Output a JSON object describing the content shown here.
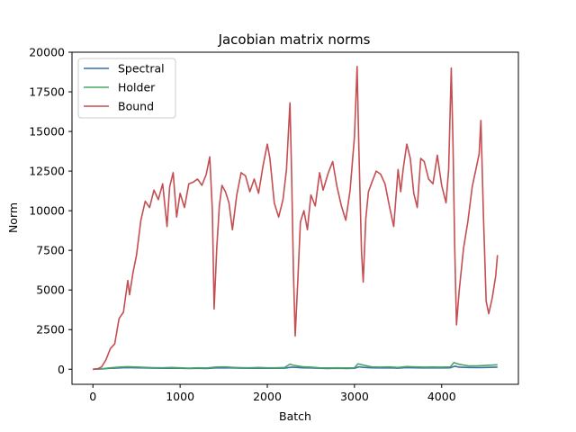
{
  "chart_data": {
    "type": "line",
    "title": "Jacobian matrix norms",
    "xlabel": "Batch",
    "ylabel": "Norm",
    "xlim": [
      -240,
      4880
    ],
    "ylim": [
      -950,
      20000
    ],
    "xticks": [
      0,
      1000,
      2000,
      3000,
      4000
    ],
    "yticks": [
      0,
      2500,
      5000,
      7500,
      10000,
      12500,
      15000,
      17500,
      20000
    ],
    "grid": false,
    "legend_position": "top-left",
    "series": [
      {
        "name": "Spectral",
        "color": "#3a6fa5",
        "points": [
          [
            0,
            0
          ],
          [
            100,
            20
          ],
          [
            200,
            60
          ],
          [
            300,
            80
          ],
          [
            400,
            100
          ],
          [
            500,
            90
          ],
          [
            600,
            80
          ],
          [
            700,
            70
          ],
          [
            800,
            60
          ],
          [
            900,
            70
          ],
          [
            1000,
            60
          ],
          [
            1100,
            50
          ],
          [
            1200,
            60
          ],
          [
            1300,
            50
          ],
          [
            1400,
            80
          ],
          [
            1500,
            90
          ],
          [
            1600,
            80
          ],
          [
            1700,
            70
          ],
          [
            1800,
            60
          ],
          [
            1900,
            70
          ],
          [
            2000,
            60
          ],
          [
            2100,
            60
          ],
          [
            2200,
            70
          ],
          [
            2280,
            130
          ],
          [
            2350,
            110
          ],
          [
            2400,
            90
          ],
          [
            2500,
            80
          ],
          [
            2600,
            60
          ],
          [
            2700,
            50
          ],
          [
            2800,
            60
          ],
          [
            2900,
            50
          ],
          [
            3000,
            60
          ],
          [
            3050,
            150
          ],
          [
            3100,
            120
          ],
          [
            3200,
            90
          ],
          [
            3300,
            80
          ],
          [
            3400,
            90
          ],
          [
            3500,
            70
          ],
          [
            3600,
            100
          ],
          [
            3700,
            90
          ],
          [
            3800,
            80
          ],
          [
            3900,
            90
          ],
          [
            4000,
            80
          ],
          [
            4100,
            90
          ],
          [
            4150,
            190
          ],
          [
            4200,
            130
          ],
          [
            4300,
            110
          ],
          [
            4400,
            100
          ],
          [
            4500,
            110
          ],
          [
            4640,
            130
          ]
        ]
      },
      {
        "name": "Holder",
        "color": "#4aa564",
        "points": [
          [
            0,
            0
          ],
          [
            100,
            30
          ],
          [
            200,
            90
          ],
          [
            300,
            130
          ],
          [
            400,
            160
          ],
          [
            500,
            140
          ],
          [
            600,
            120
          ],
          [
            700,
            100
          ],
          [
            800,
            90
          ],
          [
            900,
            110
          ],
          [
            1000,
            90
          ],
          [
            1100,
            70
          ],
          [
            1200,
            90
          ],
          [
            1300,
            80
          ],
          [
            1400,
            130
          ],
          [
            1500,
            150
          ],
          [
            1600,
            120
          ],
          [
            1700,
            100
          ],
          [
            1800,
            90
          ],
          [
            1900,
            110
          ],
          [
            2000,
            90
          ],
          [
            2100,
            90
          ],
          [
            2200,
            110
          ],
          [
            2260,
            320
          ],
          [
            2300,
            250
          ],
          [
            2400,
            160
          ],
          [
            2500,
            130
          ],
          [
            2600,
            90
          ],
          [
            2700,
            80
          ],
          [
            2800,
            90
          ],
          [
            2900,
            80
          ],
          [
            3000,
            90
          ],
          [
            3040,
            340
          ],
          [
            3100,
            260
          ],
          [
            3200,
            150
          ],
          [
            3300,
            130
          ],
          [
            3400,
            150
          ],
          [
            3500,
            110
          ],
          [
            3600,
            170
          ],
          [
            3700,
            150
          ],
          [
            3800,
            130
          ],
          [
            3900,
            140
          ],
          [
            4000,
            130
          ],
          [
            4100,
            150
          ],
          [
            4140,
            420
          ],
          [
            4200,
            310
          ],
          [
            4300,
            220
          ],
          [
            4400,
            210
          ],
          [
            4500,
            240
          ],
          [
            4640,
            280
          ]
        ]
      },
      {
        "name": "Bound",
        "color": "#c44e52",
        "points": [
          [
            0,
            0
          ],
          [
            60,
            40
          ],
          [
            100,
            150
          ],
          [
            150,
            600
          ],
          [
            200,
            1300
          ],
          [
            250,
            1600
          ],
          [
            300,
            3200
          ],
          [
            350,
            3600
          ],
          [
            400,
            5600
          ],
          [
            420,
            4700
          ],
          [
            460,
            6100
          ],
          [
            500,
            7200
          ],
          [
            550,
            9400
          ],
          [
            600,
            10600
          ],
          [
            650,
            10200
          ],
          [
            700,
            11300
          ],
          [
            750,
            10700
          ],
          [
            800,
            11700
          ],
          [
            850,
            9000
          ],
          [
            880,
            11500
          ],
          [
            920,
            12400
          ],
          [
            960,
            9600
          ],
          [
            1000,
            11100
          ],
          [
            1050,
            10200
          ],
          [
            1100,
            11700
          ],
          [
            1150,
            11800
          ],
          [
            1200,
            12000
          ],
          [
            1250,
            11600
          ],
          [
            1300,
            12300
          ],
          [
            1340,
            13400
          ],
          [
            1370,
            10000
          ],
          [
            1390,
            3800
          ],
          [
            1420,
            7600
          ],
          [
            1450,
            10300
          ],
          [
            1480,
            11600
          ],
          [
            1520,
            11200
          ],
          [
            1560,
            10500
          ],
          [
            1600,
            8800
          ],
          [
            1650,
            11000
          ],
          [
            1700,
            12400
          ],
          [
            1750,
            12200
          ],
          [
            1800,
            11200
          ],
          [
            1850,
            12000
          ],
          [
            1900,
            11100
          ],
          [
            1950,
            12800
          ],
          [
            2000,
            14200
          ],
          [
            2030,
            13300
          ],
          [
            2080,
            10500
          ],
          [
            2130,
            9600
          ],
          [
            2180,
            10700
          ],
          [
            2220,
            12600
          ],
          [
            2260,
            16800
          ],
          [
            2280,
            12000
          ],
          [
            2300,
            6100
          ],
          [
            2320,
            2100
          ],
          [
            2350,
            5600
          ],
          [
            2380,
            9300
          ],
          [
            2420,
            10000
          ],
          [
            2460,
            8800
          ],
          [
            2500,
            11000
          ],
          [
            2550,
            10300
          ],
          [
            2600,
            12400
          ],
          [
            2640,
            11300
          ],
          [
            2700,
            12400
          ],
          [
            2750,
            13100
          ],
          [
            2800,
            11500
          ],
          [
            2850,
            10300
          ],
          [
            2900,
            9400
          ],
          [
            2950,
            11300
          ],
          [
            3000,
            14700
          ],
          [
            3030,
            19100
          ],
          [
            3050,
            14000
          ],
          [
            3080,
            7500
          ],
          [
            3100,
            5500
          ],
          [
            3130,
            9500
          ],
          [
            3160,
            11200
          ],
          [
            3200,
            11800
          ],
          [
            3250,
            12500
          ],
          [
            3300,
            12300
          ],
          [
            3350,
            11700
          ],
          [
            3400,
            10300
          ],
          [
            3450,
            9000
          ],
          [
            3500,
            12600
          ],
          [
            3530,
            11200
          ],
          [
            3560,
            12700
          ],
          [
            3600,
            14200
          ],
          [
            3640,
            13300
          ],
          [
            3680,
            11100
          ],
          [
            3720,
            10200
          ],
          [
            3760,
            13300
          ],
          [
            3800,
            13100
          ],
          [
            3850,
            12000
          ],
          [
            3900,
            11700
          ],
          [
            3950,
            13500
          ],
          [
            4000,
            11600
          ],
          [
            4050,
            10500
          ],
          [
            4080,
            12600
          ],
          [
            4110,
            19000
          ],
          [
            4130,
            14200
          ],
          [
            4150,
            7600
          ],
          [
            4170,
            2800
          ],
          [
            4200,
            4900
          ],
          [
            4250,
            7600
          ],
          [
            4300,
            9300
          ],
          [
            4350,
            11500
          ],
          [
            4400,
            12800
          ],
          [
            4430,
            13600
          ],
          [
            4450,
            15700
          ],
          [
            4480,
            9500
          ],
          [
            4510,
            4300
          ],
          [
            4540,
            3500
          ],
          [
            4580,
            4500
          ],
          [
            4620,
            5900
          ],
          [
            4640,
            7200
          ]
        ]
      }
    ]
  }
}
